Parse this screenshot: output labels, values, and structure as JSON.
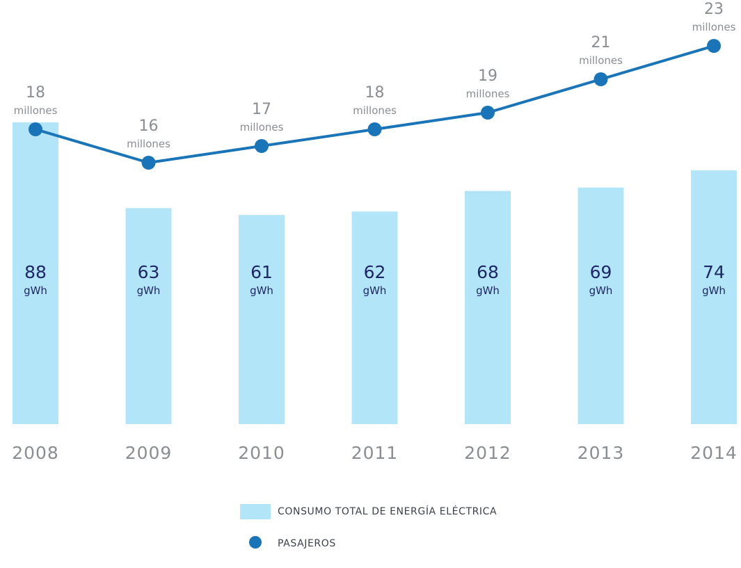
{
  "chart_data": {
    "type": "bar+line",
    "categories": [
      "2008",
      "2009",
      "2010",
      "2011",
      "2012",
      "2013",
      "2014"
    ],
    "series": [
      {
        "name": "CONSUMO TOTAL DE ENERGÍA ELÉCTRICA",
        "kind": "bar",
        "unit": "gWh",
        "values": [
          88,
          63,
          61,
          62,
          68,
          69,
          74
        ],
        "color": "#b3e5f8"
      },
      {
        "name": "PASAJEROS",
        "kind": "line",
        "unit": "millones",
        "values": [
          18,
          16,
          17,
          18,
          19,
          21,
          23
        ],
        "color": "#1a74b8"
      }
    ],
    "title": "",
    "xlabel": "",
    "ylabel": "",
    "grid": false,
    "legend_position": "bottom"
  },
  "legend": {
    "bar_label": "CONSUMO TOTAL DE ENERGÍA ELÉCTRICA",
    "line_label": "PASAJEROS"
  }
}
